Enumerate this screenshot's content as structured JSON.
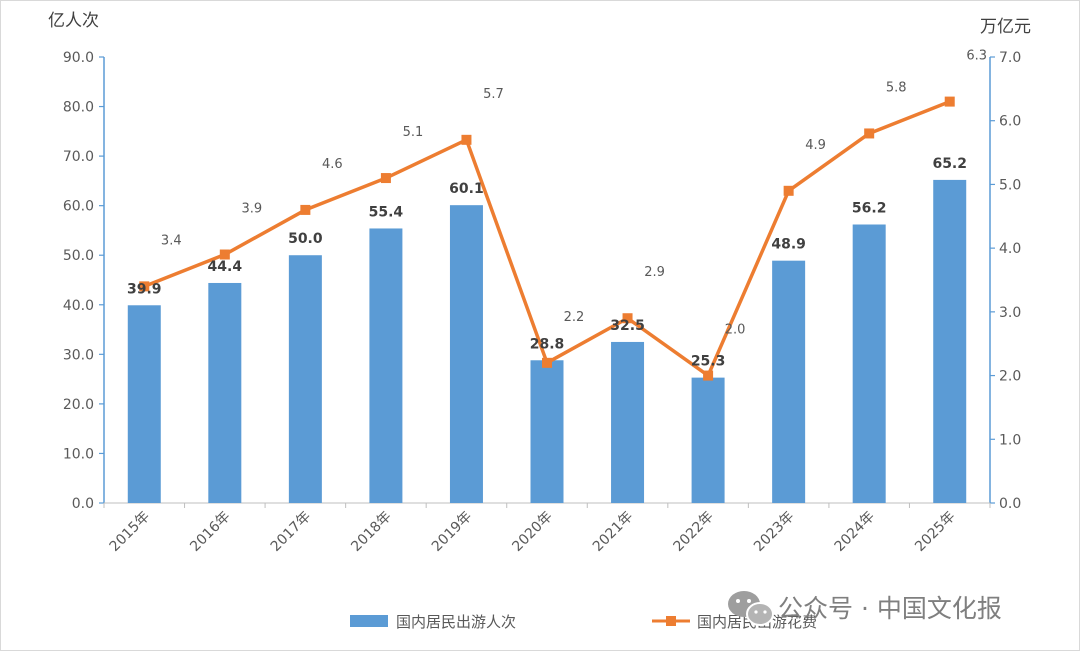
{
  "chart_data": {
    "type": "bar",
    "categories": [
      "2015年",
      "2016年",
      "2017年",
      "2018年",
      "2019年",
      "2020年",
      "2021年",
      "2022年",
      "2023年",
      "2024年",
      "2025年"
    ],
    "series": [
      {
        "name": "国内居民出游人次",
        "type": "bar",
        "axis": "left",
        "color": "#5b9bd5",
        "values": [
          39.9,
          44.4,
          50.0,
          55.4,
          60.1,
          28.8,
          32.5,
          25.3,
          48.9,
          56.2,
          65.2
        ]
      },
      {
        "name": "国内居民出游花费",
        "type": "line",
        "axis": "right",
        "color": "#ed7d31",
        "values": [
          3.4,
          3.9,
          4.6,
          5.1,
          5.7,
          2.2,
          2.9,
          2.0,
          4.9,
          5.8,
          6.3
        ]
      }
    ],
    "left_axis": {
      "unit": "亿人次",
      "ylim": [
        0,
        90
      ],
      "ticks": [
        "0.0",
        "10.0",
        "20.0",
        "30.0",
        "40.0",
        "50.0",
        "60.0",
        "70.0",
        "80.0",
        "90.0"
      ]
    },
    "right_axis": {
      "unit": "万亿元",
      "ylim": [
        0,
        7
      ],
      "ticks": [
        "0.0",
        "1.0",
        "2.0",
        "3.0",
        "4.0",
        "5.0",
        "6.0",
        "7.0"
      ]
    },
    "grid": false,
    "legend_position": "bottom"
  },
  "watermark": "公众号 · 中国文化报"
}
